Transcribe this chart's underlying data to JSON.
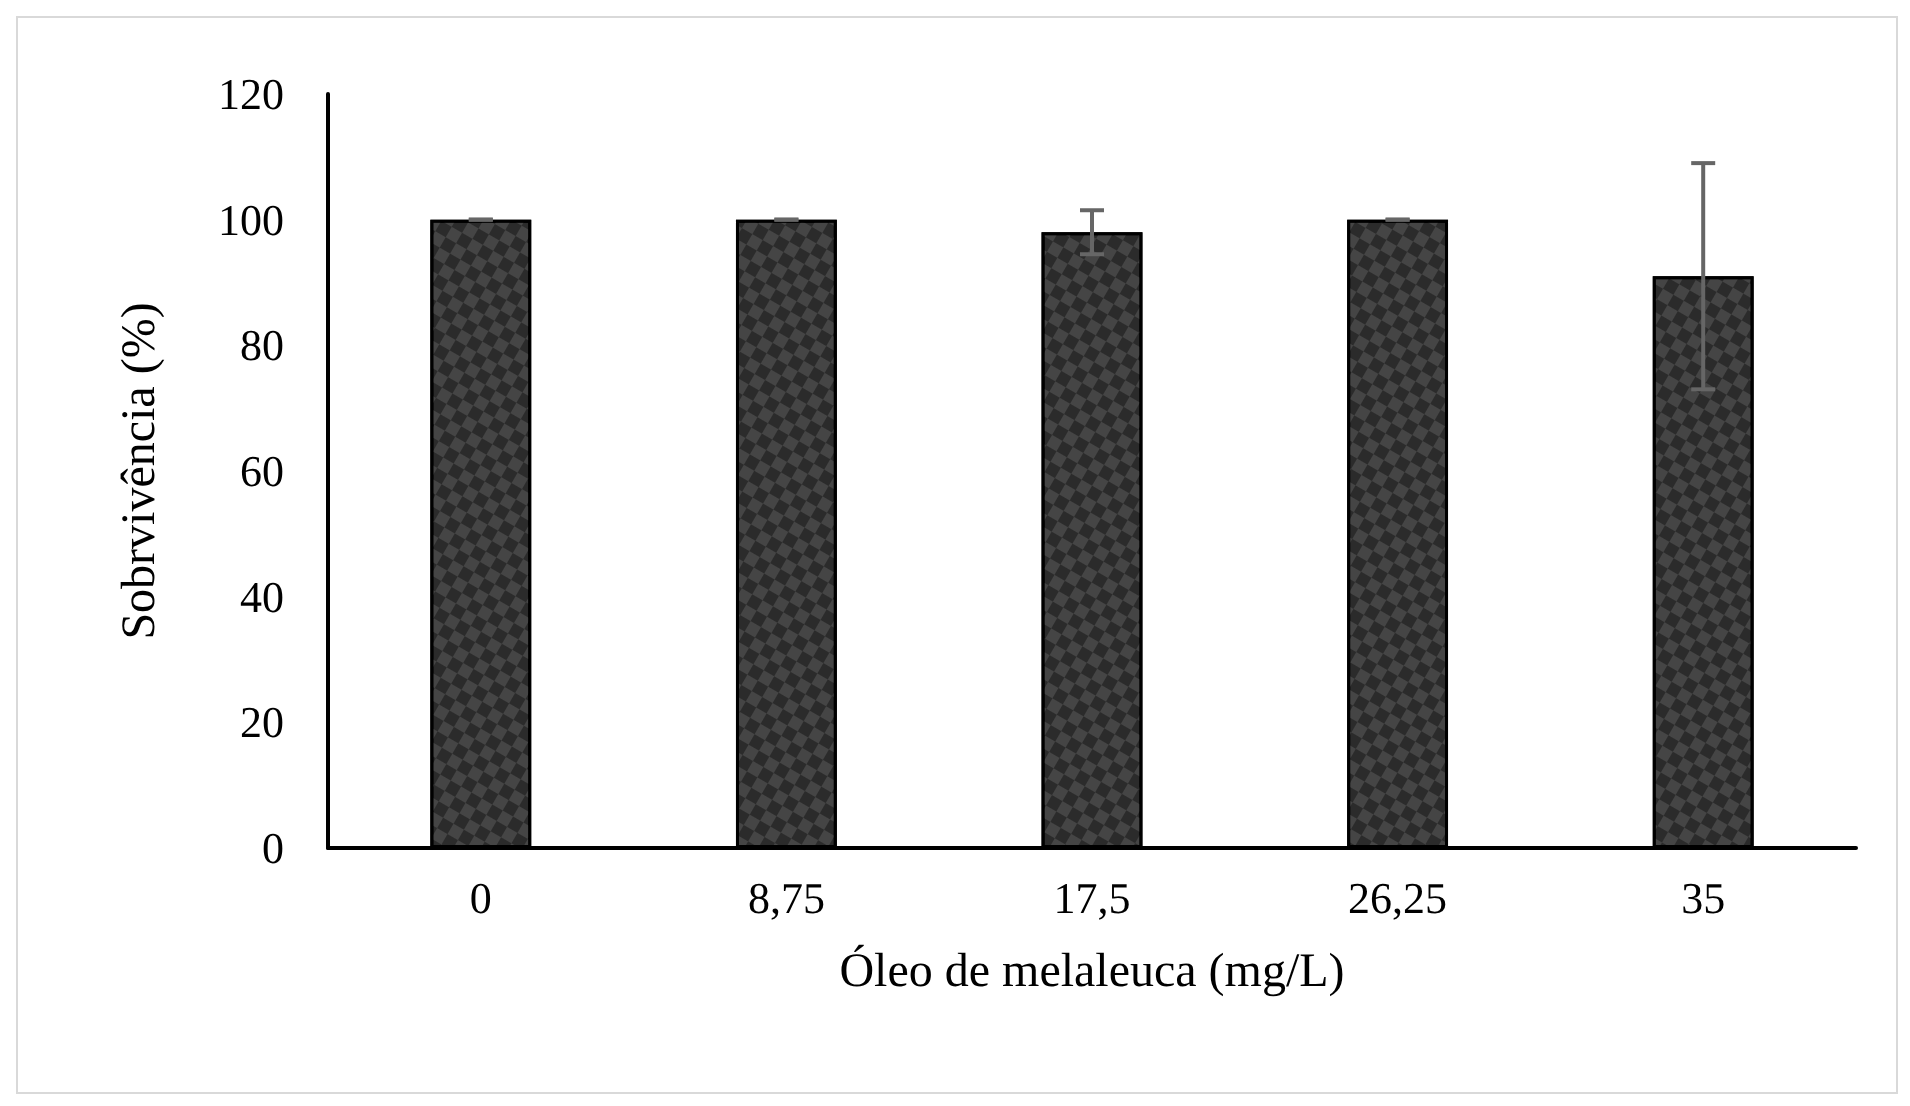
{
  "chart_data": {
    "type": "bar",
    "xlabel": "Óleo de melaleuca (mg/L)",
    "ylabel": "Sobrvivência (%)",
    "categories": [
      "0",
      "8,75",
      "17,5",
      "26,25",
      "35"
    ],
    "values": [
      100,
      100,
      98,
      100,
      91
    ],
    "errors": [
      0,
      0,
      3.5,
      0,
      18
    ],
    "color": "#2b2b2b",
    "ylim": [
      0,
      120
    ],
    "yticks": [
      0,
      20,
      40,
      60,
      80,
      100,
      120
    ],
    "grid": false
  }
}
